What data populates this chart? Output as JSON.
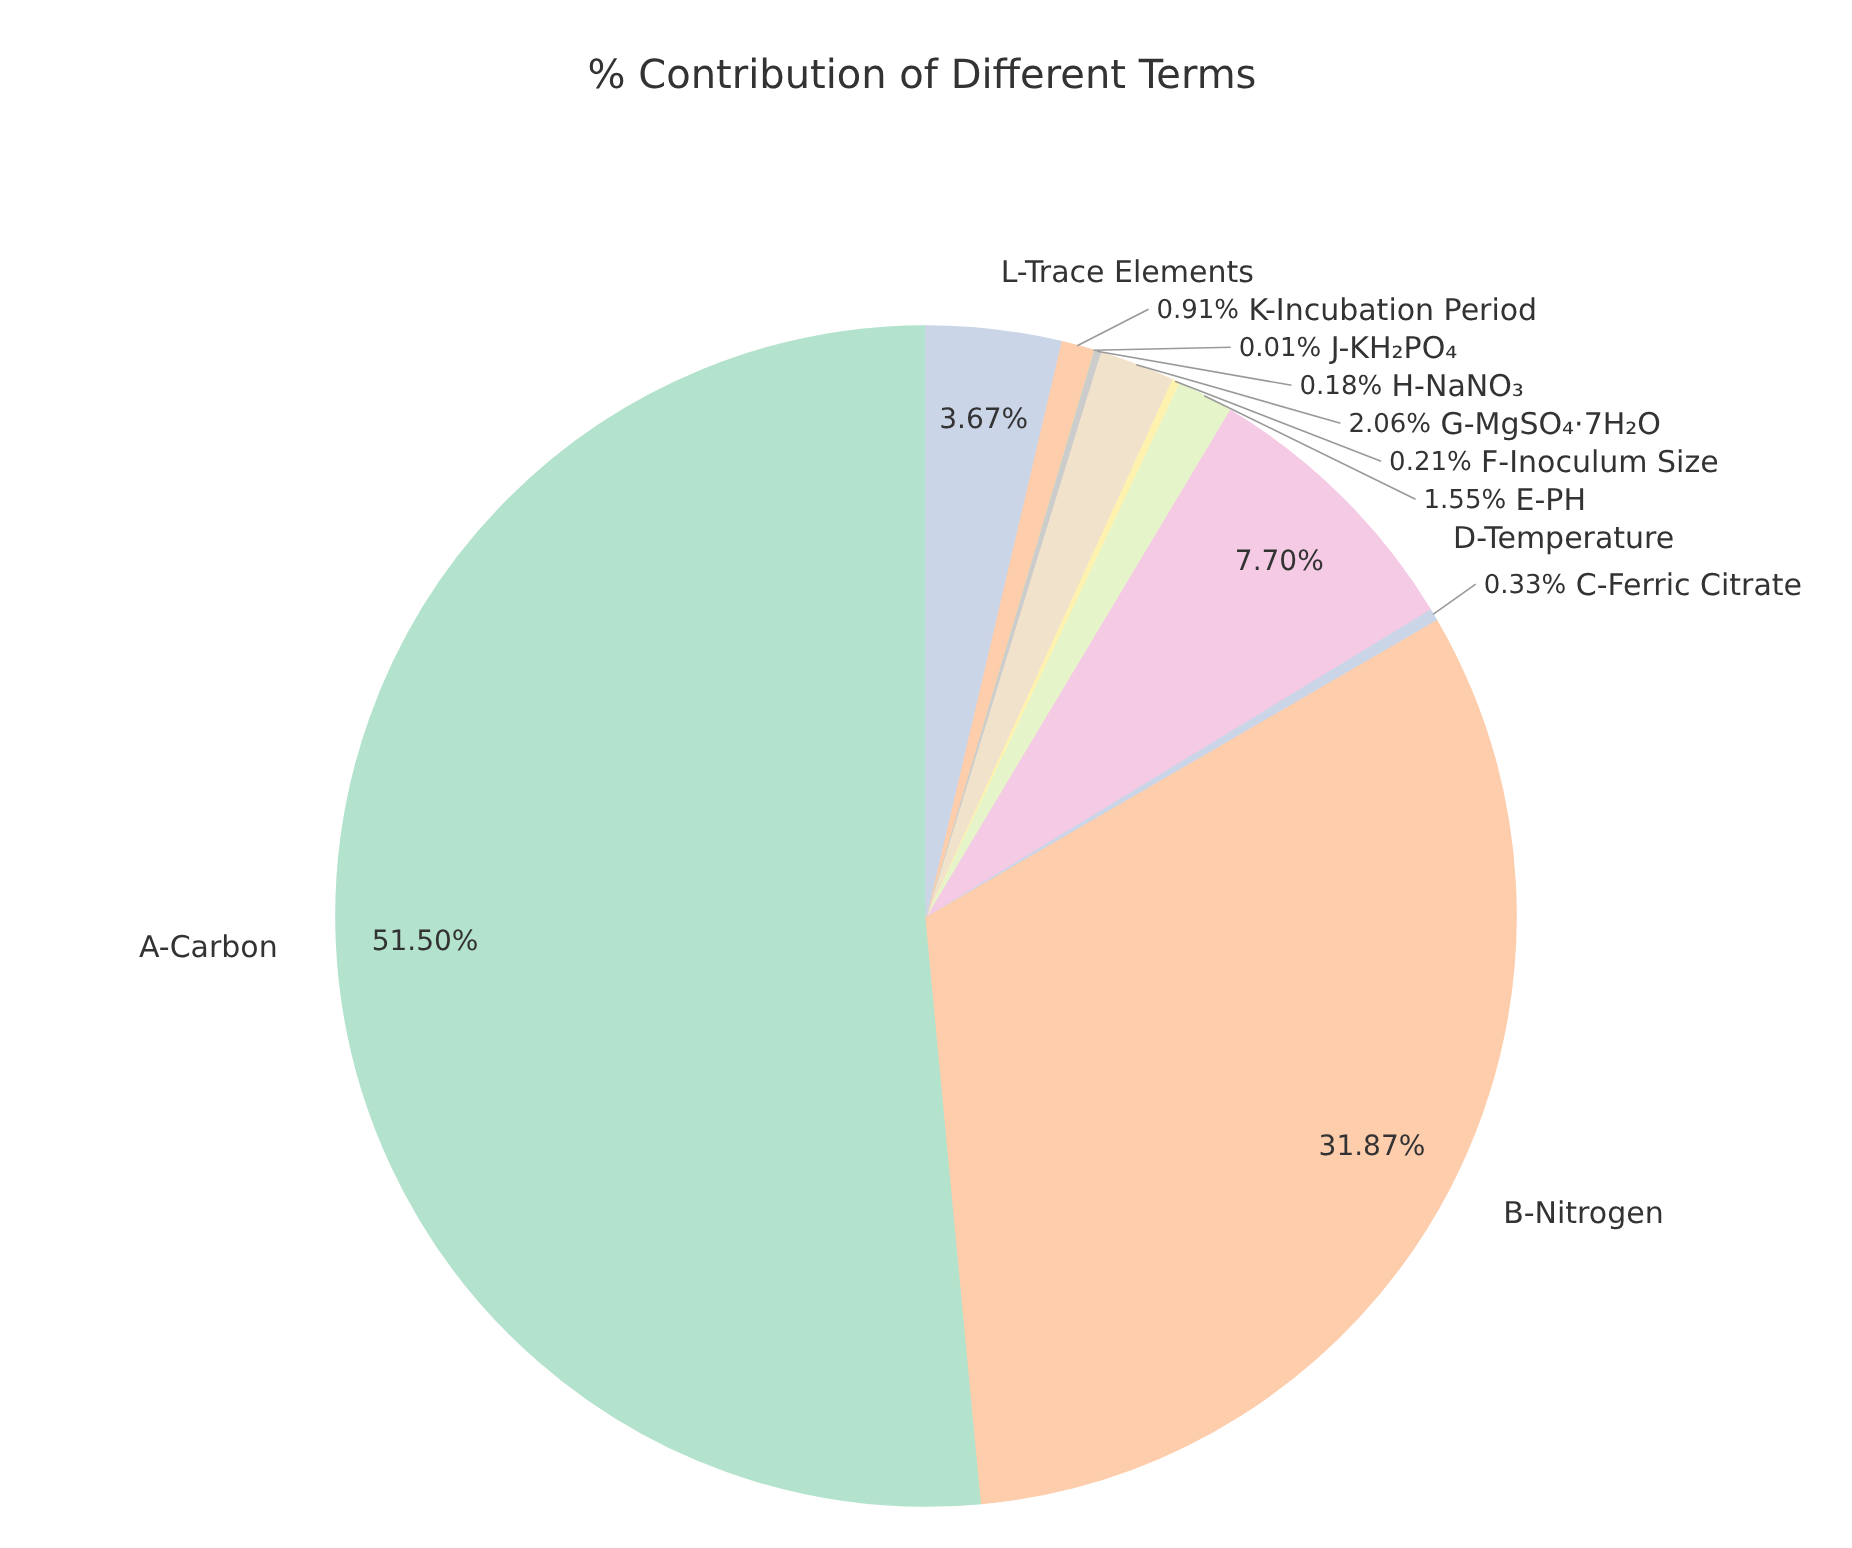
{
  "chart_data": {
    "type": "pie",
    "title": "% Contribution of Different Terms",
    "categories": [
      "A-Carbon",
      "B-Nitrogen",
      "C-Ferric Citrate",
      "D-Temperature",
      "E-PH",
      "F-Inoculum Size",
      "G-MgSO₄·7H₂O",
      "H-NaNO₃",
      "J-KH₂PO₄",
      "K-Incubation Period",
      "L-Trace Elements"
    ],
    "values": [
      51.5,
      31.87,
      0.33,
      7.7,
      1.55,
      0.21,
      2.06,
      0.18,
      0.01,
      0.91,
      3.67
    ],
    "colors": [
      "#b3e2cd",
      "#fdcdac",
      "#cbd5e8",
      "#f4cae4",
      "#e6f5c9",
      "#fff2ae",
      "#f1e2cc",
      "#cccccc",
      "#b3e2cd",
      "#fdcdac",
      "#cbd5e8"
    ],
    "value_labels": [
      "51.50%",
      "31.87%",
      "0.33%",
      "7.70%",
      "1.55%",
      "0.21%",
      "2.06%",
      "0.18%",
      "0.01%",
      "0.91%",
      "3.67%"
    ]
  }
}
